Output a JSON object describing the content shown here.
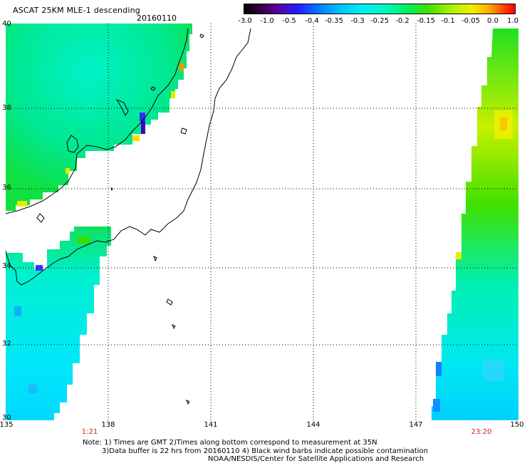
{
  "title": "ASCAT 25KM MLE-1 descending",
  "date": "20160110",
  "colorbar": {
    "labels": [
      "-3.0",
      "-1.0",
      "-0.5",
      "-0.4",
      "-0.35",
      "-0.3",
      "-0.25",
      "-0.2",
      "-0.15",
      "-0.1",
      "-0.05",
      "0.0",
      "1.0"
    ]
  },
  "axes": {
    "lat_labels": [
      "40",
      "38",
      "36",
      "34",
      "32",
      "30"
    ],
    "lon_labels": [
      "135",
      "138",
      "141",
      "144",
      "147",
      "150"
    ]
  },
  "pass_times": {
    "left": "1:21",
    "right": "23:20"
  },
  "notes": {
    "line1": "Note: 1) Times are GMT 2)Times along bottom correspond to measurement at 35N",
    "line2": "3)Data buffer is 22 hrs from 20160110 4) Black wind barbs indicate possible contamination",
    "line3": "NOAA/NESDIS/Center for Satellite Applications and Research"
  }
}
